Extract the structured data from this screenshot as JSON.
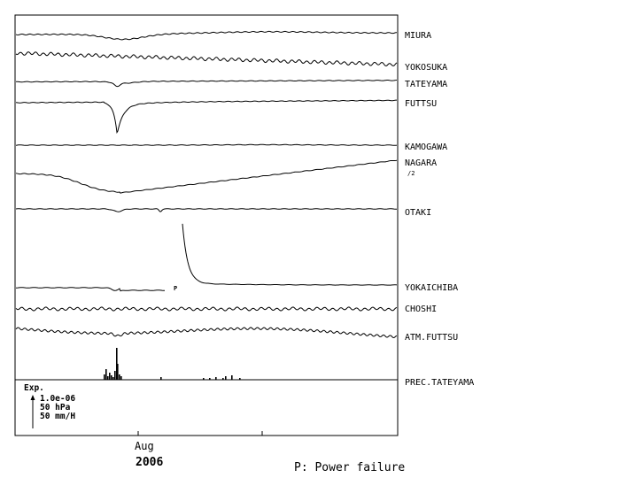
{
  "chart_data": {
    "type": "line",
    "stations": [
      {
        "name": "MIURA",
        "trace": "miura"
      },
      {
        "name": "YOKOSUKA",
        "trace": "yokosuka"
      },
      {
        "name": "TATEYAMA",
        "trace": "tateyama"
      },
      {
        "name": "FUTTSU",
        "trace": "futtsu"
      },
      {
        "name": "KAMOGAWA",
        "trace": "kamogawa"
      },
      {
        "name": "NAGARA",
        "sublabel": "/2",
        "trace": "nagara"
      },
      {
        "name": "OTAKI",
        "trace": "otaki"
      },
      {
        "name": "YOKAICHIBA",
        "trace": "yokaichiba"
      },
      {
        "name": "CHOSHI",
        "trace": "choshi"
      },
      {
        "name": "ATM.FUTTSU",
        "trace": "atm"
      },
      {
        "name": "PREC.TATEYAMA",
        "trace": "prec"
      }
    ],
    "scale": {
      "title": "Exp.",
      "lines": [
        "1.0e-06",
        "50 hPa",
        "50 mm/H"
      ]
    },
    "x_axis": {
      "tick_label": "Aug",
      "year": "2006"
    },
    "annotation_marker": "P",
    "footnote": "P: Power failure"
  }
}
